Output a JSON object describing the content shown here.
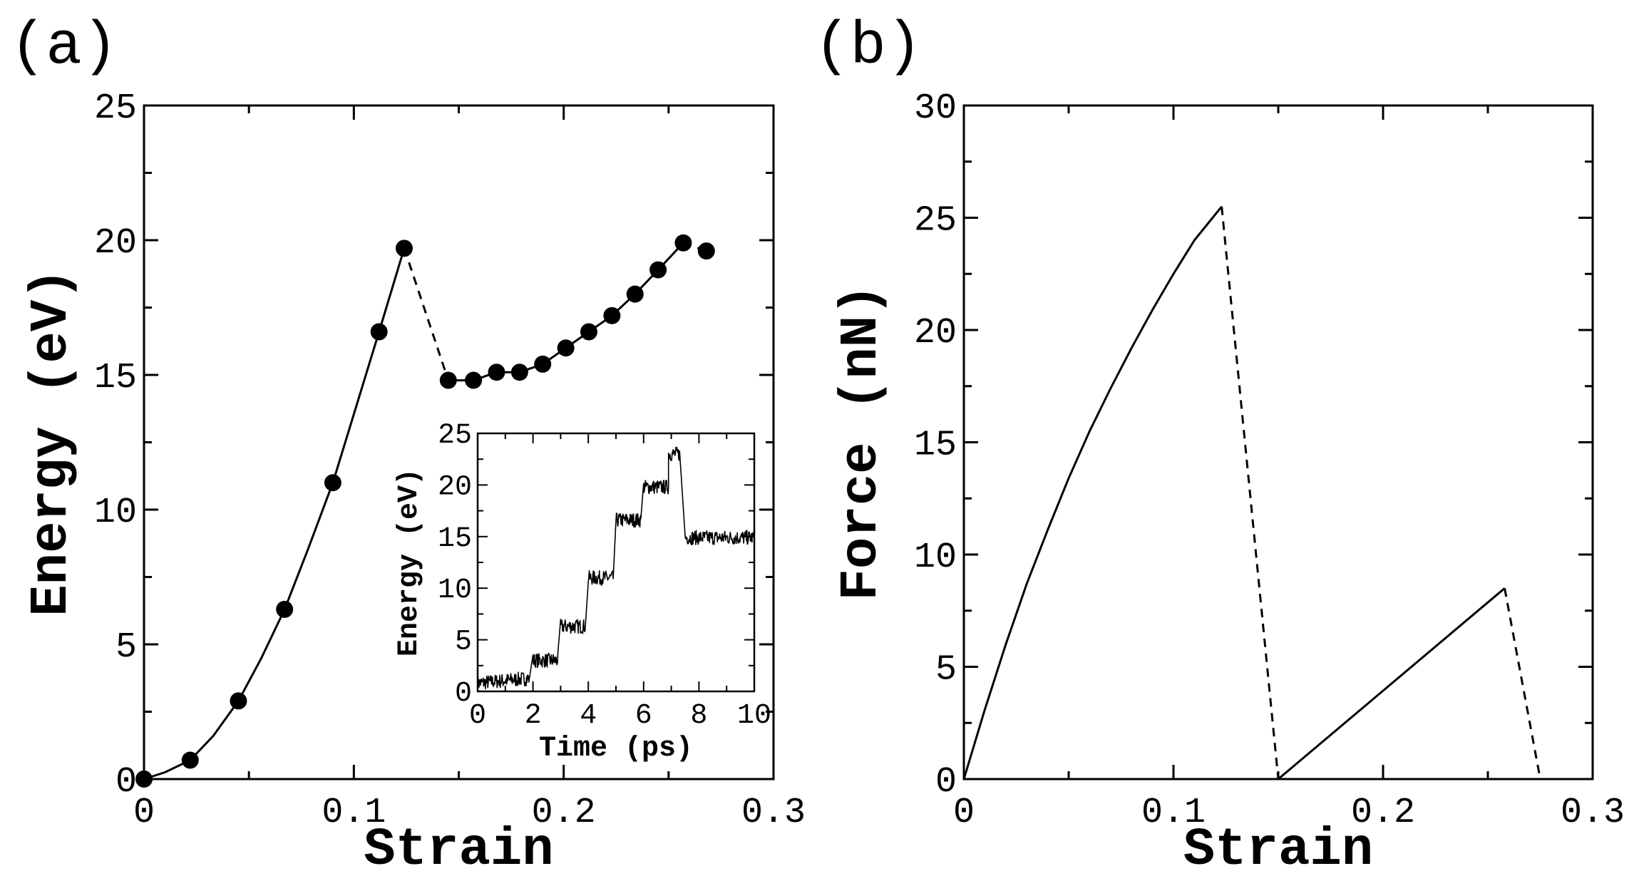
{
  "chart_data": [
    {
      "panel": "(a)",
      "type": "scatter",
      "title": "",
      "xlabel": "Strain",
      "ylabel": "Energy (eV)",
      "xlim": [
        0,
        0.3
      ],
      "ylim": [
        0,
        25
      ],
      "xticks": [
        "0",
        "0.1",
        "0.2",
        "0.3"
      ],
      "yticks": [
        "0",
        "5",
        "10",
        "15",
        "20",
        "25"
      ],
      "grid": false,
      "series": [
        {
          "name": "points",
          "style": "markers",
          "x": [
            0.0,
            0.022,
            0.045,
            0.067,
            0.09,
            0.112,
            0.124,
            0.145,
            0.157,
            0.168,
            0.179,
            0.19,
            0.201,
            0.212,
            0.223,
            0.234,
            0.245,
            0.257,
            0.268
          ],
          "y": [
            0.0,
            0.7,
            2.9,
            6.3,
            11.0,
            16.6,
            19.7,
            14.8,
            14.8,
            15.1,
            15.1,
            15.4,
            16.0,
            16.6,
            17.2,
            18.0,
            18.9,
            19.9,
            19.6
          ]
        },
        {
          "name": "fit-first-branch",
          "style": "solid",
          "x": [
            0.0,
            0.01,
            0.022,
            0.033,
            0.045,
            0.056,
            0.067,
            0.078,
            0.09,
            0.101,
            0.112,
            0.124
          ],
          "y": [
            0.0,
            0.25,
            0.7,
            1.6,
            2.9,
            4.5,
            6.3,
            8.5,
            11.0,
            13.8,
            16.6,
            19.7
          ]
        },
        {
          "name": "drop",
          "style": "dashed",
          "x": [
            0.124,
            0.145
          ],
          "y": [
            19.7,
            14.8
          ]
        },
        {
          "name": "fit-second-branch",
          "style": "solid",
          "x": [
            0.145,
            0.157,
            0.168,
            0.179,
            0.19,
            0.201,
            0.212,
            0.223,
            0.234,
            0.245,
            0.257
          ],
          "y": [
            14.8,
            14.8,
            15.1,
            15.1,
            15.4,
            16.0,
            16.6,
            17.2,
            18.0,
            18.9,
            19.9
          ]
        },
        {
          "name": "end",
          "style": "dashed",
          "x": [
            0.257,
            0.268
          ],
          "y": [
            19.9,
            19.6
          ]
        }
      ],
      "inset": {
        "type": "line",
        "xlabel": "Time (ps)",
        "ylabel": "Energy (eV)",
        "xlim": [
          0,
          10
        ],
        "ylim": [
          0,
          25
        ],
        "xticks": [
          "0",
          "2",
          "4",
          "6",
          "8",
          "10"
        ],
        "yticks": [
          "0",
          "5",
          "10",
          "15",
          "20",
          "25"
        ],
        "segments": [
          {
            "t": [
              0,
              1.85
            ],
            "level": 0.8,
            "slope": 0.25
          },
          {
            "t": [
              2.0,
              2.9
            ],
            "level": 3.0,
            "slope": 0.0
          },
          {
            "t": [
              3.0,
              3.9
            ],
            "level": 6.3,
            "slope": 0.0
          },
          {
            "t": [
              4.0,
              4.9
            ],
            "level": 11.0,
            "slope": 0.0
          },
          {
            "t": [
              5.0,
              5.9
            ],
            "level": 16.6,
            "slope": 0.0
          },
          {
            "t": [
              6.0,
              6.9
            ],
            "level": 19.8,
            "slope": 0.0
          },
          {
            "t": [
              6.9,
              7.3
            ],
            "level": 23.0,
            "slope": 0.0
          },
          {
            "t": [
              7.5,
              10.0
            ],
            "level": 14.9,
            "slope": 0.0
          }
        ]
      }
    },
    {
      "panel": "(b)",
      "type": "line",
      "title": "",
      "xlabel": "Strain",
      "ylabel": "Force (nN)",
      "xlim": [
        0,
        0.3
      ],
      "ylim": [
        0,
        30
      ],
      "xticks": [
        "0",
        "0.1",
        "0.2",
        "0.3"
      ],
      "yticks": [
        "0",
        "5",
        "10",
        "15",
        "20",
        "25",
        "30"
      ],
      "grid": false,
      "series": [
        {
          "name": "first-loading",
          "style": "solid",
          "x": [
            0.0,
            0.01,
            0.02,
            0.03,
            0.04,
            0.05,
            0.06,
            0.07,
            0.08,
            0.09,
            0.1,
            0.11,
            0.123
          ],
          "y": [
            0.0,
            3.1,
            6.0,
            8.7,
            11.1,
            13.4,
            15.5,
            17.4,
            19.2,
            20.9,
            22.5,
            24.0,
            25.5
          ]
        },
        {
          "name": "first-drop",
          "style": "dashed",
          "x": [
            0.123,
            0.15
          ],
          "y": [
            25.5,
            0.0
          ]
        },
        {
          "name": "second-loading",
          "style": "solid",
          "x": [
            0.15,
            0.258
          ],
          "y": [
            0.0,
            8.5
          ]
        },
        {
          "name": "second-drop",
          "style": "dashed",
          "x": [
            0.258,
            0.275
          ],
          "y": [
            8.5,
            0.0
          ]
        }
      ]
    }
  ]
}
